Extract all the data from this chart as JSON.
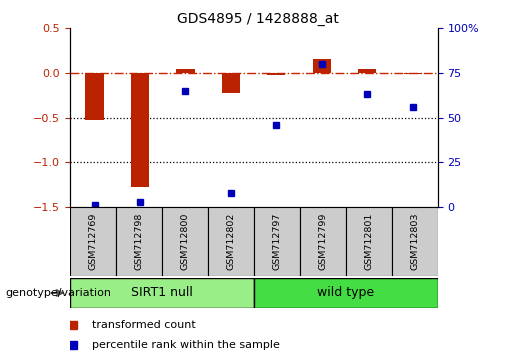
{
  "title": "GDS4895 / 1428888_at",
  "samples": [
    "GSM712769",
    "GSM712798",
    "GSM712800",
    "GSM712802",
    "GSM712797",
    "GSM712799",
    "GSM712801",
    "GSM712803"
  ],
  "red_values": [
    -0.53,
    -1.27,
    0.05,
    -0.22,
    -0.02,
    0.16,
    0.05,
    -0.01
  ],
  "blue_values_pct": [
    1,
    3,
    65,
    8,
    46,
    80,
    63,
    56
  ],
  "group1_label": "SIRT1 null",
  "group2_label": "wild type",
  "group1_count": 4,
  "group2_count": 4,
  "genotype_label": "genotype/variation",
  "legend_red": "transformed count",
  "legend_blue": "percentile rank within the sample",
  "ylim_left": [
    -1.5,
    0.5
  ],
  "ylim_right": [
    0,
    100
  ],
  "yticks_left": [
    -1.5,
    -1.0,
    -0.5,
    0.0,
    0.5
  ],
  "yticks_right": [
    0,
    25,
    50,
    75,
    100
  ],
  "red_color": "#bb2200",
  "blue_color": "#0000bb",
  "group1_color": "#99ee88",
  "group2_color": "#44dd44",
  "sample_box_color": "#cccccc",
  "hline_color": "#cc2200",
  "dotted_line_color": "#000000",
  "bar_width": 0.4,
  "marker_size": 5,
  "title_fontsize": 10,
  "tick_fontsize": 8,
  "label_fontsize": 8,
  "group_fontsize": 9,
  "legend_fontsize": 8
}
